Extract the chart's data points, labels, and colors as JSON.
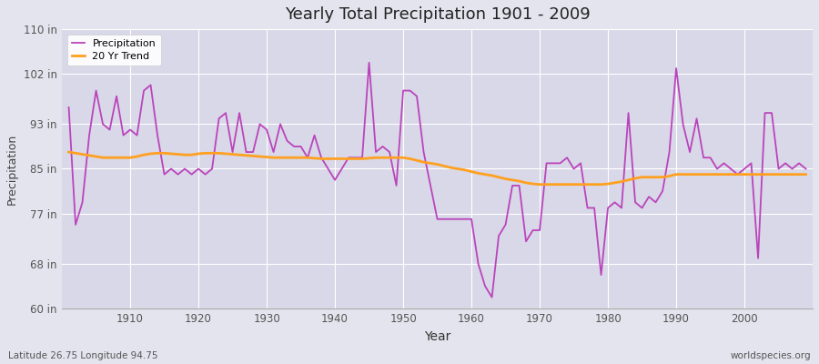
{
  "title": "Yearly Total Precipitation 1901 - 2009",
  "xlabel": "Year",
  "ylabel": "Precipitation",
  "subtitle_left": "Latitude 26.75 Longitude 94.75",
  "subtitle_right": "worldspecies.org",
  "precip_color": "#BB44BB",
  "trend_color": "#FFA020",
  "bg_color": "#E4E4EE",
  "plot_bg_color": "#D8D8E8",
  "ylim": [
    60,
    110
  ],
  "yticks": [
    60,
    68,
    77,
    85,
    93,
    102,
    110
  ],
  "ytick_labels": [
    "60 in",
    "68 in",
    "77 in",
    "85 in",
    "93 in",
    "102 in",
    "110 in"
  ],
  "years": [
    1901,
    1902,
    1903,
    1904,
    1905,
    1906,
    1907,
    1908,
    1909,
    1910,
    1911,
    1912,
    1913,
    1914,
    1915,
    1916,
    1917,
    1918,
    1919,
    1920,
    1921,
    1922,
    1923,
    1924,
    1925,
    1926,
    1927,
    1928,
    1929,
    1930,
    1931,
    1932,
    1933,
    1934,
    1935,
    1936,
    1937,
    1938,
    1939,
    1940,
    1941,
    1942,
    1943,
    1944,
    1945,
    1946,
    1947,
    1948,
    1949,
    1950,
    1951,
    1952,
    1953,
    1954,
    1955,
    1956,
    1957,
    1958,
    1959,
    1960,
    1961,
    1962,
    1963,
    1964,
    1965,
    1966,
    1967,
    1968,
    1969,
    1970,
    1971,
    1972,
    1973,
    1974,
    1975,
    1976,
    1977,
    1978,
    1979,
    1980,
    1981,
    1982,
    1983,
    1984,
    1985,
    1986,
    1987,
    1988,
    1989,
    1990,
    1991,
    1992,
    1993,
    1994,
    1995,
    1996,
    1997,
    1998,
    1999,
    2000,
    2001,
    2002,
    2003,
    2004,
    2005,
    2006,
    2007,
    2008,
    2009
  ],
  "precipitation": [
    96,
    75,
    79,
    91,
    99,
    93,
    92,
    98,
    91,
    92,
    91,
    99,
    100,
    91,
    84,
    85,
    84,
    85,
    84,
    85,
    84,
    85,
    94,
    95,
    88,
    95,
    88,
    88,
    93,
    92,
    88,
    93,
    90,
    89,
    89,
    87,
    91,
    87,
    85,
    83,
    85,
    87,
    87,
    87,
    104,
    88,
    89,
    88,
    82,
    99,
    99,
    98,
    88,
    82,
    76,
    76,
    76,
    76,
    76,
    76,
    68,
    64,
    62,
    73,
    75,
    82,
    82,
    72,
    74,
    74,
    86,
    86,
    86,
    87,
    85,
    86,
    78,
    78,
    66,
    78,
    79,
    78,
    95,
    79,
    78,
    80,
    79,
    81,
    88,
    103,
    93,
    88,
    94,
    87,
    87,
    85,
    86,
    85,
    84,
    85,
    86,
    69,
    95,
    95,
    85,
    86,
    85,
    86,
    85
  ],
  "trend": [
    88.0,
    87.8,
    87.6,
    87.4,
    87.2,
    87.0,
    87.0,
    87.0,
    87.0,
    87.0,
    87.2,
    87.5,
    87.7,
    87.8,
    87.8,
    87.7,
    87.6,
    87.5,
    87.5,
    87.7,
    87.8,
    87.8,
    87.8,
    87.7,
    87.6,
    87.5,
    87.4,
    87.3,
    87.2,
    87.1,
    87.0,
    87.0,
    87.0,
    87.0,
    87.0,
    87.0,
    86.9,
    86.8,
    86.8,
    86.8,
    86.8,
    86.8,
    86.8,
    86.8,
    86.9,
    87.0,
    87.0,
    87.0,
    87.0,
    87.0,
    86.8,
    86.5,
    86.2,
    86.0,
    85.8,
    85.5,
    85.2,
    85.0,
    84.8,
    84.5,
    84.2,
    84.0,
    83.8,
    83.5,
    83.2,
    83.0,
    82.8,
    82.5,
    82.3,
    82.2,
    82.2,
    82.2,
    82.2,
    82.2,
    82.2,
    82.2,
    82.2,
    82.2,
    82.2,
    82.3,
    82.5,
    82.7,
    83.0,
    83.3,
    83.5,
    83.5,
    83.5,
    83.5,
    83.7,
    84.0,
    84.0,
    84.0,
    84.0,
    84.0,
    84.0,
    84.0,
    84.0,
    84.0,
    84.0,
    84.0,
    84.0,
    84.0,
    84.0,
    84.0,
    84.0,
    84.0,
    84.0,
    84.0,
    84.0
  ]
}
